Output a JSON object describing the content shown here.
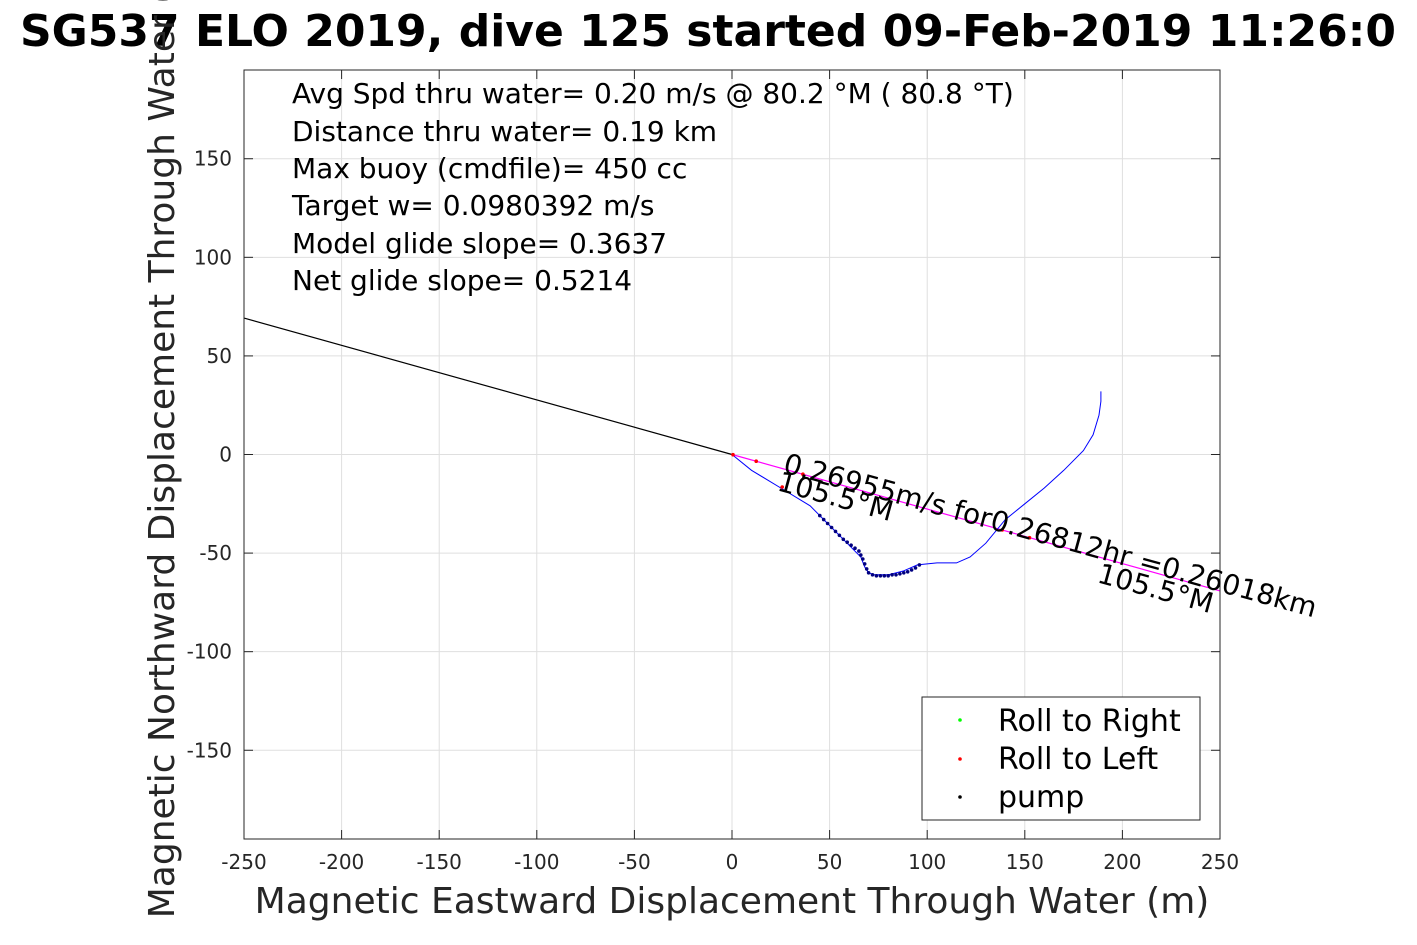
{
  "chart_data": {
    "type": "line",
    "title": "SG537 ELO 2019, dive 125 started 09-Feb-2019 11:26:0",
    "xlabel": "Magnetic Eastward Displacement Through Water (m)",
    "ylabel": "Magnetic Northward Displacement Through Water (",
    "xlim": [
      -250,
      250
    ],
    "ylim": [
      -195,
      195
    ],
    "xticks": [
      -250,
      -200,
      -150,
      -100,
      -50,
      0,
      50,
      100,
      150,
      200,
      250
    ],
    "yticks": [
      -150,
      -100,
      -50,
      0,
      50,
      100,
      150
    ],
    "grid": true,
    "info_lines": [
      "Avg Spd thru water=  0.20 m/s @  80.2 °M ( 80.8 °T)",
      "Distance thru water=  0.19 km",
      "Max buoy (cmdfile)= 450 cc",
      "Target w= 0.0980392 m/s",
      "Model glide slope= 0.3637",
      "Net glide slope= 0.5214"
    ],
    "annotations": {
      "current_text": "0.26955m/s for0.26812hr =0.26018km",
      "heading_near": "105.5°M",
      "heading_far": "105.5°M"
    },
    "series": [
      {
        "role": "current-line",
        "color": "#000000",
        "x": [
          -250,
          0
        ],
        "y": [
          69.2,
          0
        ]
      },
      {
        "role": "current-vector",
        "color": "#ff00ff",
        "x": [
          0,
          250
        ],
        "y": [
          0,
          -69.2
        ]
      },
      {
        "role": "track",
        "color": "#0000ff",
        "x": [
          0,
          10,
          25,
          40,
          50,
          60,
          66,
          68,
          70,
          73,
          80,
          88,
          95,
          105,
          115,
          122,
          130,
          140,
          150,
          160,
          170,
          180,
          185,
          188,
          189,
          189
        ],
        "y": [
          0,
          -8,
          -17,
          -26,
          -36,
          -46,
          -52,
          -57,
          -60,
          -61,
          -61,
          -59,
          -56,
          -55,
          -55,
          -52,
          -45,
          -33,
          -25,
          -17,
          -8,
          2,
          10,
          20,
          27,
          32
        ]
      },
      {
        "name": "Roll to Right",
        "color": "#00ff00",
        "x": [],
        "y": []
      },
      {
        "name": "Roll to Left",
        "color": "#ff0000",
        "x": [
          0.5,
          12.4,
          25.7,
          36.3,
          138.4,
          152.4
        ],
        "y": [
          -0.1,
          -3.4,
          -16.5,
          -10.0,
          -38.3,
          -42.2
        ]
      },
      {
        "name": "pump",
        "color": "#000080",
        "x": [
          45,
          47,
          49,
          51,
          53,
          55,
          57,
          59,
          61,
          63,
          65,
          66,
          67,
          68,
          69,
          70,
          72,
          74,
          76,
          78,
          80,
          82,
          84,
          86,
          88,
          90,
          92,
          94,
          96
        ],
        "y": [
          -31,
          -33,
          -35,
          -37,
          -39,
          -41,
          -43,
          -44.5,
          -46,
          -47.5,
          -49,
          -51,
          -53,
          -55.5,
          -58,
          -60,
          -61,
          -61.5,
          -61.5,
          -61.5,
          -61.5,
          -61,
          -61,
          -60.5,
          -60,
          -59.5,
          -58.5,
          -57.5,
          -56
        ]
      }
    ],
    "legend": {
      "placement": "bottom-right",
      "entries": [
        "Roll to Right",
        "Roll to Left",
        "pump"
      ]
    }
  }
}
